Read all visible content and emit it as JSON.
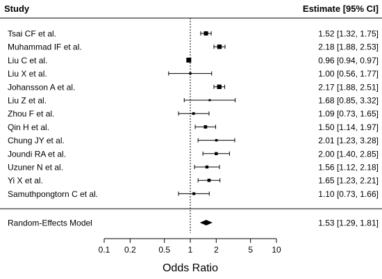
{
  "header": {
    "study_label": "Study",
    "estimate_label": "Estimate [95% CI]"
  },
  "chart_data": {
    "type": "forest",
    "xlabel": "Odds Ratio",
    "x_scale": "log",
    "xlim": [
      0.1,
      10
    ],
    "ticks": [
      {
        "value": 0.1,
        "label": "0.1"
      },
      {
        "value": 0.2,
        "label": "0.2"
      },
      {
        "value": 0.5,
        "label": "0.5"
      },
      {
        "value": 1,
        "label": "1"
      },
      {
        "value": 2,
        "label": "2"
      },
      {
        "value": 5,
        "label": "5"
      },
      {
        "value": 10,
        "label": "10"
      }
    ],
    "reference_line": 1,
    "studies": [
      {
        "name": "Tsai CF et al.",
        "estimate": 1.52,
        "lower": 1.32,
        "upper": 1.75,
        "weight": 0.6,
        "label": "1.52 [1.32, 1.75]"
      },
      {
        "name": "Muhammad IF et al.",
        "estimate": 2.18,
        "lower": 1.88,
        "upper": 2.53,
        "weight": 0.65,
        "label": "2.18 [1.88, 2.53]"
      },
      {
        "name": "Liu C et al.",
        "estimate": 0.96,
        "lower": 0.94,
        "upper": 0.97,
        "weight": 0.75,
        "label": "0.96 [0.94, 0.97]"
      },
      {
        "name": "Liu X et al.",
        "estimate": 1.0,
        "lower": 0.56,
        "upper": 1.77,
        "weight": 0.12,
        "label": "1.00 [0.56, 1.77]"
      },
      {
        "name": "Johansson A et al.",
        "estimate": 2.17,
        "lower": 1.88,
        "upper": 2.51,
        "weight": 0.65,
        "label": "2.17 [1.88, 2.51]"
      },
      {
        "name": "Liu Z et al.",
        "estimate": 1.68,
        "lower": 0.85,
        "upper": 3.32,
        "weight": 0.08,
        "label": "1.68 [0.85, 3.32]"
      },
      {
        "name": "Zhou F et al.",
        "estimate": 1.09,
        "lower": 0.73,
        "upper": 1.65,
        "weight": 0.22,
        "label": "1.09 [0.73, 1.65]"
      },
      {
        "name": "Qin H et al.",
        "estimate": 1.5,
        "lower": 1.14,
        "upper": 1.97,
        "weight": 0.38,
        "label": "1.50 [1.14, 1.97]"
      },
      {
        "name": "Chung JY et al.",
        "estimate": 2.01,
        "lower": 1.23,
        "upper": 3.28,
        "weight": 0.18,
        "label": "2.01 [1.23, 3.28]"
      },
      {
        "name": "Joundi RA et al.",
        "estimate": 2.0,
        "lower": 1.4,
        "upper": 2.85,
        "weight": 0.32,
        "label": "2.00 [1.40, 2.85]"
      },
      {
        "name": "Uzuner N et al.",
        "estimate": 1.56,
        "lower": 1.12,
        "upper": 2.18,
        "weight": 0.3,
        "label": "1.56 [1.12, 2.18]"
      },
      {
        "name": "Yi X et al.",
        "estimate": 1.65,
        "lower": 1.23,
        "upper": 2.21,
        "weight": 0.35,
        "label": "1.65 [1.23, 2.21]"
      },
      {
        "name": "Samuthpongtorn C et al.",
        "estimate": 1.1,
        "lower": 0.73,
        "upper": 1.66,
        "weight": 0.25,
        "label": "1.10 [0.73, 1.66]"
      }
    ],
    "summary": {
      "name": "Random-Effects Model",
      "estimate": 1.53,
      "lower": 1.29,
      "upper": 1.81,
      "label": "1.53 [1.29, 1.81]"
    }
  }
}
